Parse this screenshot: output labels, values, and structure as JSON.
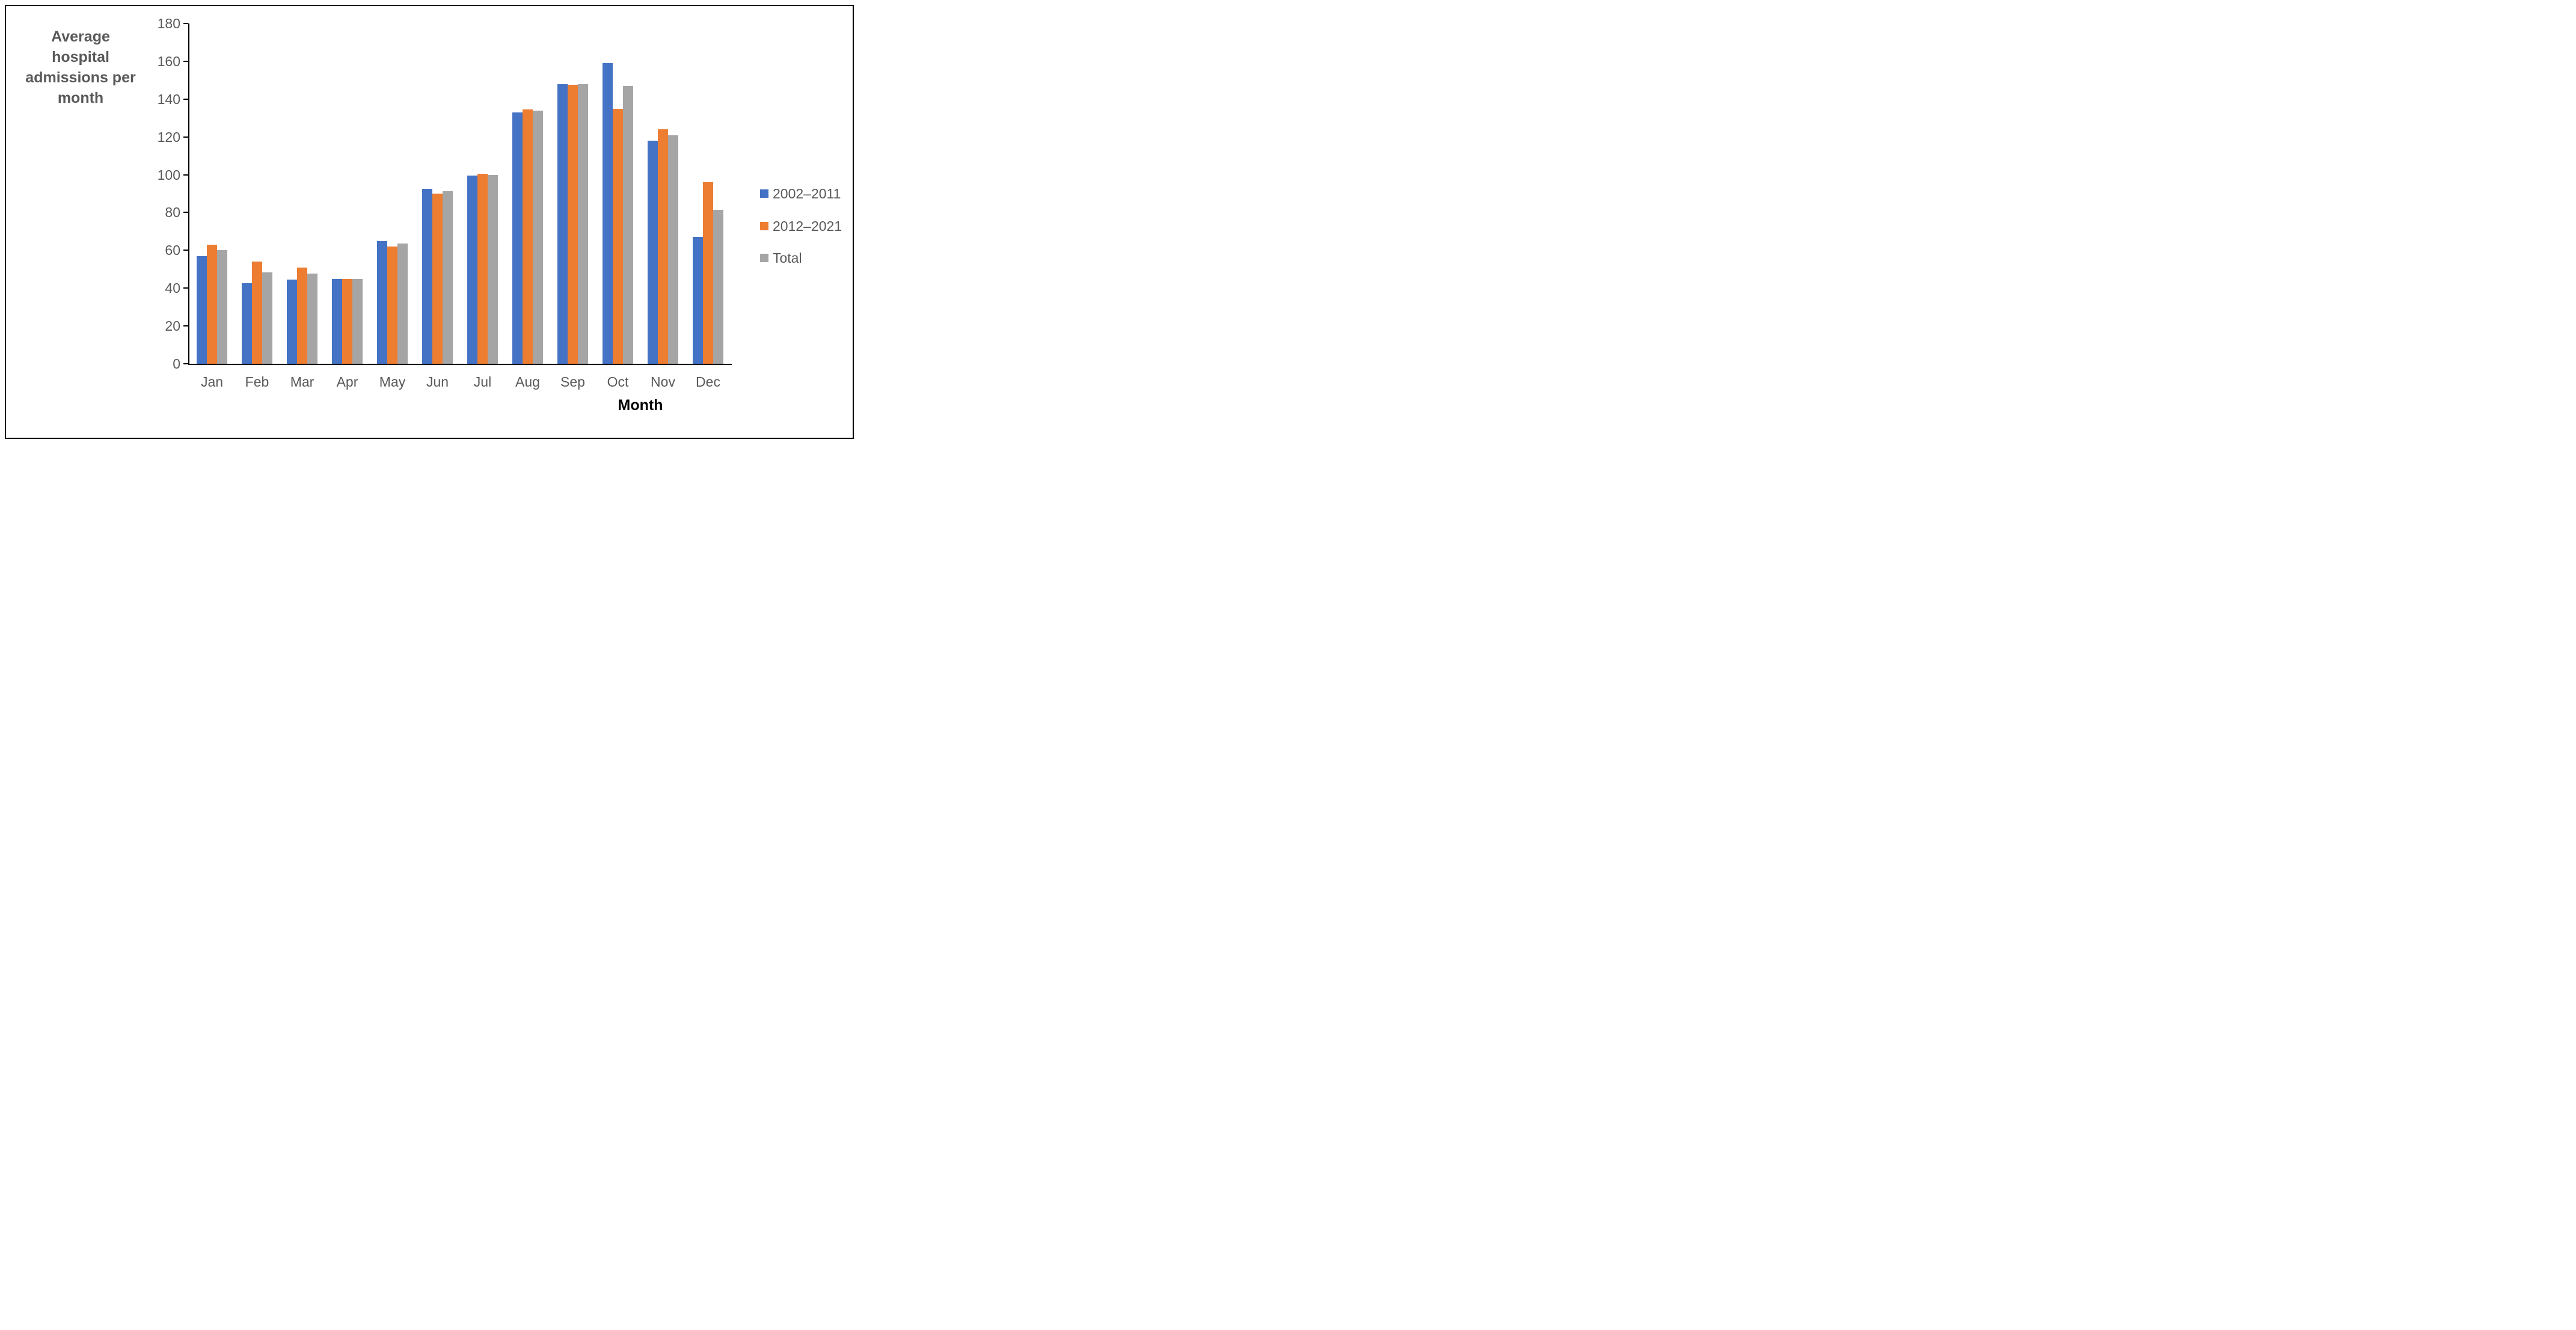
{
  "chart_data": {
    "type": "bar",
    "title": "Average hospital admissions per month",
    "title_lines": [
      "Average hospital",
      "admissions per",
      "month"
    ],
    "xlabel": "Month",
    "ylabel": "Average hospital admissions per month",
    "categories": [
      "Jan",
      "Feb",
      "Mar",
      "Apr",
      "May",
      "Jun",
      "Jul",
      "Aug",
      "Sep",
      "Oct",
      "Nov",
      "Dec"
    ],
    "series": [
      {
        "name": "2002–2011",
        "color": "#4472C4",
        "values": [
          57,
          42.5,
          44.5,
          45,
          65,
          92.5,
          99.5,
          133,
          148,
          159,
          118,
          67
        ]
      },
      {
        "name": "2012–2021",
        "color": "#ED7D31",
        "values": [
          63,
          54,
          51,
          45,
          62,
          90,
          100.5,
          134.5,
          147.5,
          135,
          124,
          96
        ]
      },
      {
        "name": "Total",
        "color": "#A5A5A5",
        "values": [
          60,
          48.25,
          47.75,
          45,
          63.5,
          91.25,
          100,
          133.75,
          147.75,
          147,
          121,
          81.5
        ]
      }
    ],
    "y_axis": {
      "min": 0,
      "max": 180,
      "step": 20,
      "ticks": [
        0,
        20,
        40,
        60,
        80,
        100,
        120,
        140,
        160,
        180
      ]
    },
    "legend_position": "right",
    "grid": false
  },
  "style": {
    "background": "#FFFFFF",
    "border_color": "#000000",
    "axis_color": "#000000",
    "text_color": "#595959",
    "title_color": "#595959",
    "xlabel_color": "#000000"
  }
}
